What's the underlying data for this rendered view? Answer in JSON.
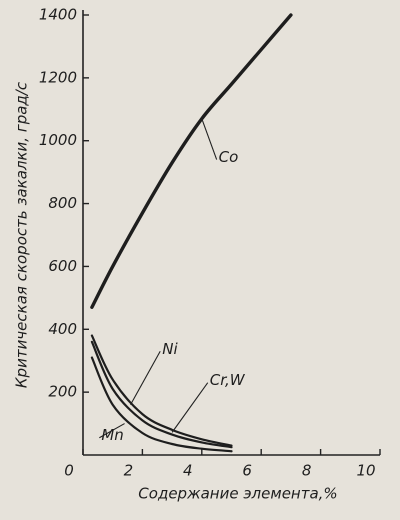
{
  "chart_data": {
    "type": "line",
    "xlabel": "Содержание элемента,%",
    "ylabel": "Критическая скорость закалки, град/с",
    "xlim": [
      0,
      10
    ],
    "xticks": [
      0,
      2,
      4,
      6,
      8,
      10
    ],
    "ylim": [
      0,
      1400
    ],
    "yticks": [
      200,
      400,
      600,
      800,
      1000,
      1200,
      1400
    ],
    "series": [
      {
        "name": "Co",
        "color": "#1e1e1e",
        "x": [
          0.3,
          1,
          2,
          3,
          4,
          5,
          6,
          7
        ],
        "values": [
          470,
          600,
          770,
          930,
          1070,
          1180,
          1290,
          1400
        ]
      },
      {
        "name": "Ni",
        "color": "#1e1e1e",
        "x": [
          0.3,
          1,
          2,
          3,
          4,
          5
        ],
        "values": [
          380,
          240,
          130,
          80,
          50,
          30
        ]
      },
      {
        "name": "Cr,W",
        "color": "#1e1e1e",
        "x": [
          0.3,
          1,
          2,
          3,
          4,
          5
        ],
        "values": [
          360,
          210,
          110,
          65,
          40,
          25
        ]
      },
      {
        "name": "Mn",
        "color": "#1e1e1e",
        "x": [
          0.3,
          1,
          2,
          3,
          4,
          5
        ],
        "values": [
          310,
          160,
          70,
          35,
          20,
          12
        ]
      }
    ]
  }
}
